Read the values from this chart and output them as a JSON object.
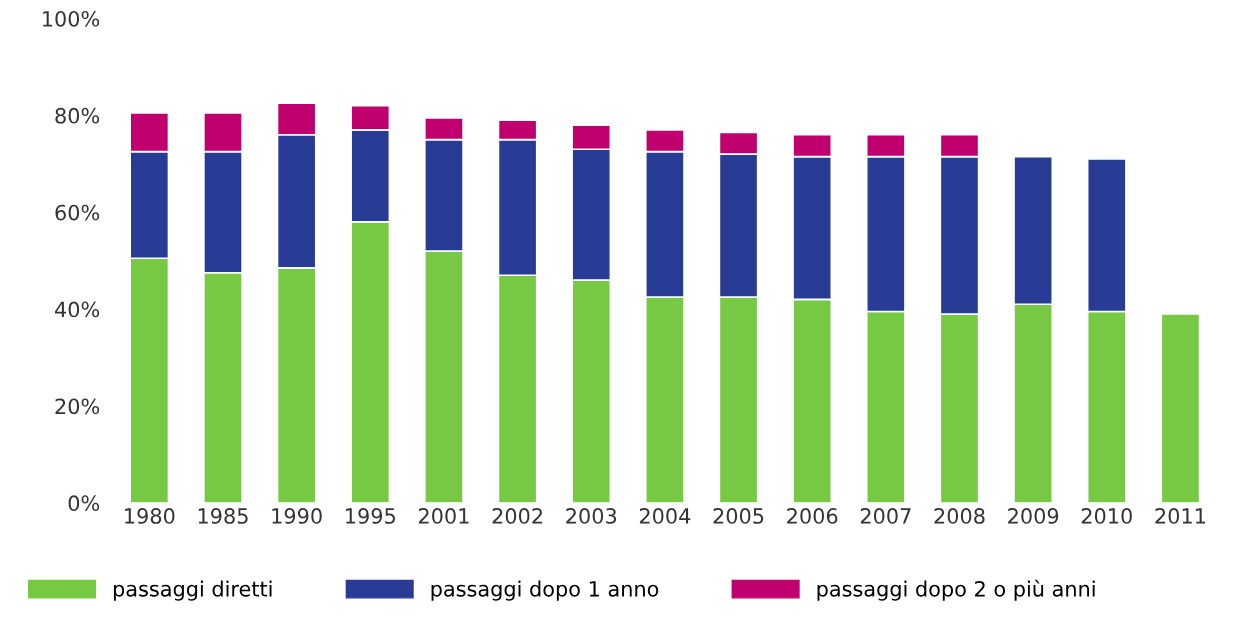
{
  "chart_data": {
    "type": "bar",
    "stacked": true,
    "categories": [
      "1980",
      "1985",
      "1990",
      "1995",
      "2001",
      "2002",
      "2003",
      "2004",
      "2005",
      "2006",
      "2007",
      "2008",
      "2009",
      "2010",
      "2011"
    ],
    "series": [
      {
        "name": "passaggi diretti",
        "color": "#77c843",
        "values": [
          50.5,
          47.5,
          48.5,
          58,
          52,
          47,
          46,
          42.5,
          42.5,
          42,
          39.5,
          39,
          41,
          39.5,
          39
        ]
      },
      {
        "name": "passaggi dopo 1 anno",
        "color": "#283c96",
        "values": [
          22,
          25,
          27.5,
          19,
          23,
          28,
          27,
          30,
          29.5,
          29.5,
          32,
          32.5,
          30.5,
          31.5,
          null
        ]
      },
      {
        "name": "passaggi dopo 2 o più anni",
        "color": "#c0006e",
        "values": [
          8,
          8,
          6.5,
          5,
          4.5,
          4,
          5,
          4.5,
          4.5,
          4.5,
          4.5,
          4.5,
          null,
          null,
          null
        ]
      }
    ],
    "ylim": [
      0,
      100
    ],
    "yticks": [
      {
        "value": 0,
        "label": "0%"
      },
      {
        "value": 20,
        "label": "20%"
      },
      {
        "value": 40,
        "label": "40%"
      },
      {
        "value": 60,
        "label": "60%"
      },
      {
        "value": 80,
        "label": "80%"
      },
      {
        "value": 100,
        "label": "100%"
      }
    ],
    "grid": false,
    "legend": "bottom"
  }
}
